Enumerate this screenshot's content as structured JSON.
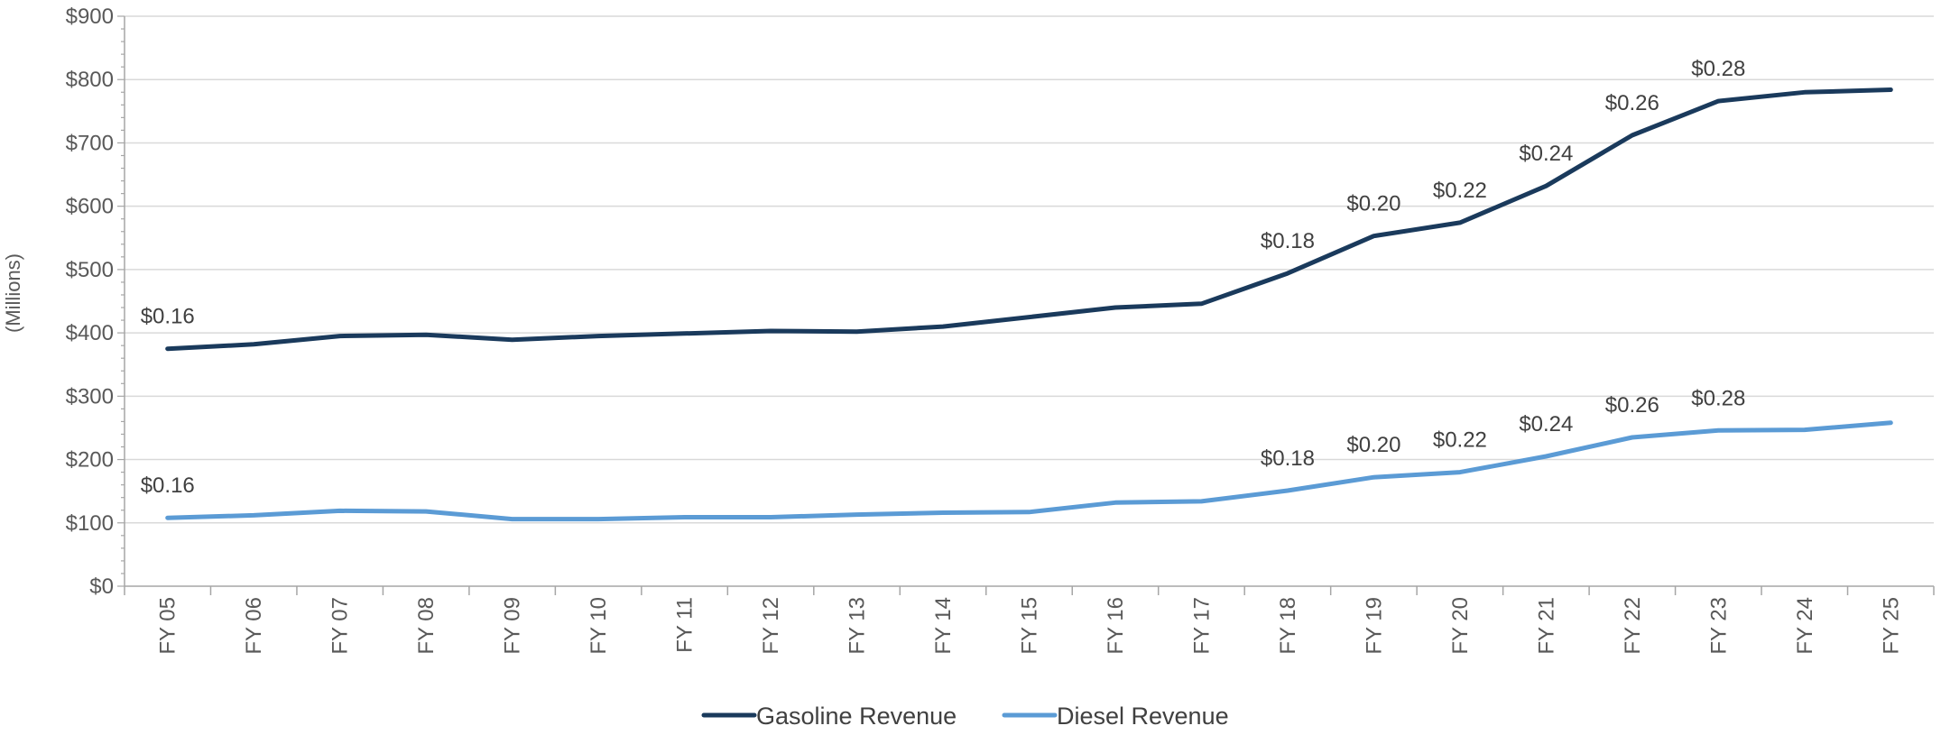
{
  "chart_data": {
    "type": "line",
    "ylabel": "(Millions)",
    "ylim": [
      0,
      900
    ],
    "yticks": [
      "$0",
      "$100",
      "$200",
      "$300",
      "$400",
      "$500",
      "$600",
      "$700",
      "$800",
      "$900"
    ],
    "ytick_values": [
      0,
      100,
      200,
      300,
      400,
      500,
      600,
      700,
      800,
      900
    ],
    "categories": [
      "FY 05",
      "FY 06",
      "FY 07",
      "FY 08",
      "FY 09",
      "FY 10",
      "FY 11",
      "FY 12",
      "FY 13",
      "FY 14",
      "FY 15",
      "FY 16",
      "FY 17",
      "FY 18",
      "FY 19",
      "FY 20",
      "FY 21",
      "FY 22",
      "FY 23",
      "FY 24",
      "FY 25"
    ],
    "grid": true,
    "legend_position": "bottom",
    "series": [
      {
        "name": "Gasoline Revenue",
        "color": "#1a3a5c",
        "values": [
          375,
          382,
          395,
          397,
          389,
          395,
          399,
          403,
          402,
          410,
          425,
          440,
          446,
          494,
          553,
          574,
          632,
          712,
          766,
          780,
          784
        ],
        "labels": [
          {
            "index": 0,
            "text": "$0.16"
          },
          {
            "index": 13,
            "text": "$0.18"
          },
          {
            "index": 14,
            "text": "$0.20"
          },
          {
            "index": 15,
            "text": "$0.22"
          },
          {
            "index": 16,
            "text": "$0.24"
          },
          {
            "index": 17,
            "text": "$0.26"
          },
          {
            "index": 18,
            "text": "$0.28"
          }
        ]
      },
      {
        "name": "Diesel Revenue",
        "color": "#5b9bd5",
        "values": [
          108,
          112,
          119,
          118,
          106,
          106,
          109,
          109,
          113,
          116,
          117,
          132,
          134,
          151,
          172,
          180,
          205,
          235,
          246,
          247,
          258
        ],
        "labels": [
          {
            "index": 0,
            "text": "$0.16"
          },
          {
            "index": 13,
            "text": "$0.18"
          },
          {
            "index": 14,
            "text": "$0.20"
          },
          {
            "index": 15,
            "text": "$0.22"
          },
          {
            "index": 16,
            "text": "$0.24"
          },
          {
            "index": 17,
            "text": "$0.26"
          },
          {
            "index": 18,
            "text": "$0.28"
          }
        ]
      }
    ]
  }
}
